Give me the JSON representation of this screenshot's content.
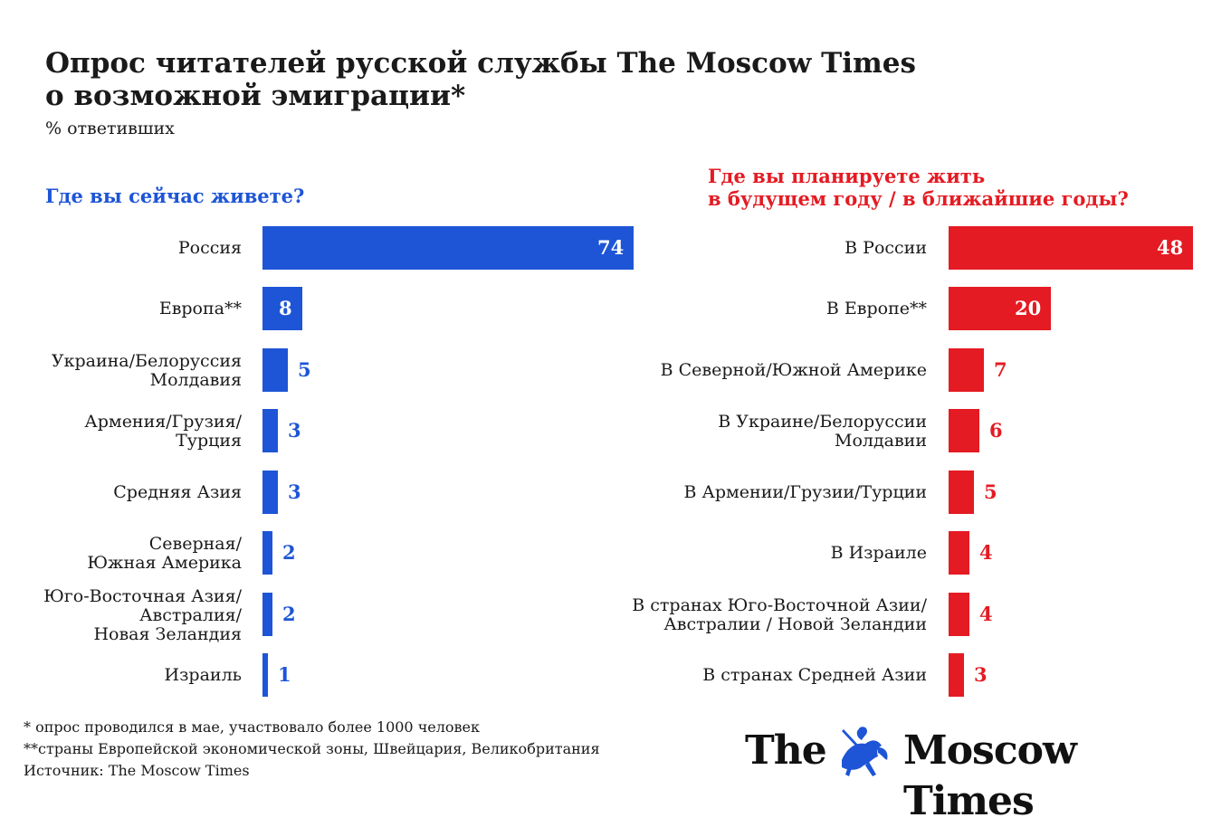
{
  "title": {
    "line1": "Опрос читателей русской службы The Moscow Times",
    "line2": "о возможной эмиграции*"
  },
  "subtitle": "% ответивших",
  "chart_data": [
    {
      "type": "bar",
      "orientation": "horizontal",
      "title": "Где вы сейчас живете?",
      "color": "#1e55d6",
      "categories": [
        "Россия",
        "Европа**",
        "Украина/Белоруссия\nМолдавия",
        "Армения/Грузия/\nТурция",
        "Средняя Азия",
        "Северная/\nЮжная Америка",
        "Юго-Восточная Азия/\nАвстралия/\nНовая Зеландия",
        "Израиль"
      ],
      "values": [
        74,
        8,
        5,
        3,
        3,
        2,
        2,
        1
      ]
    },
    {
      "type": "bar",
      "orientation": "horizontal",
      "title": "Где вы планируете жить\nв будущем году / в ближайшие годы?",
      "color": "#e41b23",
      "categories": [
        "В России",
        "В Европе**",
        "В Северной/Южной Америке",
        "В Украине/Белоруссии\nМолдавии",
        "В Армении/Грузии/Турции",
        "В Израиле",
        "В странах Юго-Восточной Азии/\nАвстралии / Новой Зеландии",
        "В странах Средней Азии"
      ],
      "values": [
        48,
        20,
        7,
        6,
        5,
        4,
        4,
        3
      ]
    }
  ],
  "footnotes": {
    "note1": "* опрос проводился в мае, участвовало более 1000 человек",
    "note2": "**страны Европейской экономической зоны, Швейцария, Великобритания",
    "source": "Источник: The Moscow Times"
  },
  "logo": {
    "text_the": "The",
    "text_rest": "Moscow Times",
    "icon": "st-george-emblem-icon",
    "emblem_color": "#1e55d6"
  }
}
